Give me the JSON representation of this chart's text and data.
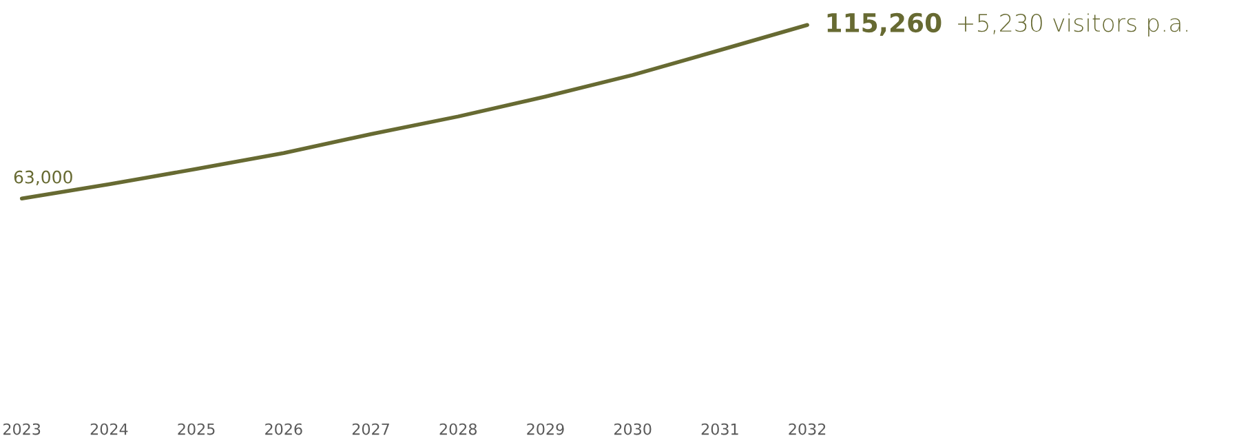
{
  "chart_data": {
    "type": "line",
    "categories": [
      "2023",
      "2024",
      "2025",
      "2026",
      "2027",
      "2028",
      "2029",
      "2030",
      "2031",
      "2032"
    ],
    "series": [
      {
        "color": "#676a32",
        "values": [
          63000,
          67300,
          71900,
          76700,
          82400,
          87700,
          93700,
          100200,
          107700,
          115260
        ],
        "value_labels": [
          "63,000",
          null,
          null,
          null,
          null,
          null,
          null,
          null,
          null,
          "115,260"
        ]
      }
    ],
    "annotations": [
      "+5,230 visitors p.a."
    ],
    "tick_labels": "x",
    "marker": "none",
    "line_style": "solid"
  }
}
